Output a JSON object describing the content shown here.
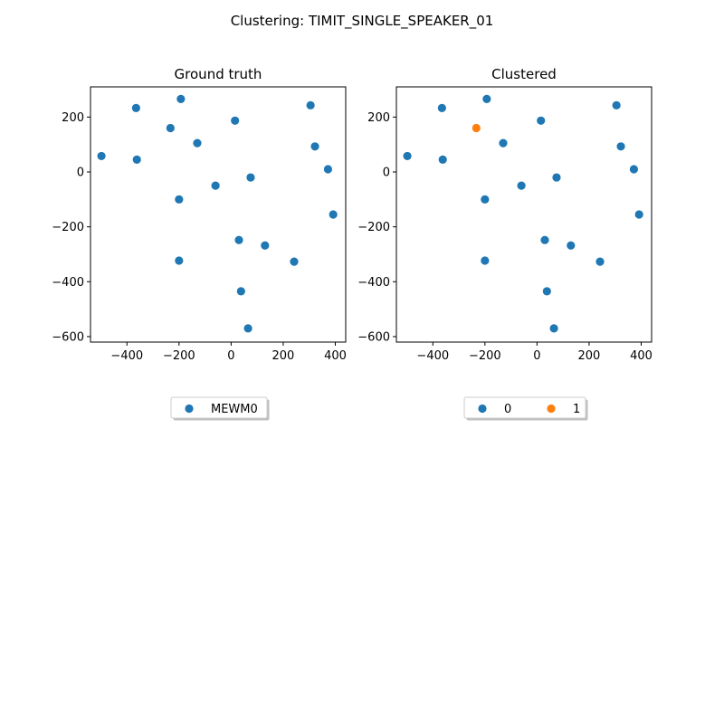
{
  "title": "Clustering: TIMIT_SINGLE_SPEAKER_01",
  "colors": {
    "c0": "#1f77b4",
    "c1": "#ff7f0e"
  },
  "chart_data": [
    {
      "type": "scatter",
      "title": "Ground truth",
      "xlim": [
        -540,
        440
      ],
      "ylim": [
        -620,
        310
      ],
      "xticks": [
        -400,
        -200,
        0,
        200,
        400
      ],
      "yticks": [
        -600,
        -400,
        -200,
        0,
        200
      ],
      "xtick_labels": [
        "−400",
        "−200",
        "0",
        "200",
        "400"
      ],
      "ytick_labels": [
        "−600",
        "−400",
        "−200",
        "0",
        "200"
      ],
      "legend": {
        "placement": "bottom-center",
        "ncol": 1
      },
      "series": [
        {
          "name": "MEWM0",
          "color": "#1f77b4",
          "points": [
            [
              -498,
              58
            ],
            [
              -365,
              233
            ],
            [
              -362,
              45
            ],
            [
              -233,
              160
            ],
            [
              -193,
              266
            ],
            [
              -130,
              105
            ],
            [
              -200,
              -100
            ],
            [
              -200,
              -323
            ],
            [
              -60,
              -50
            ],
            [
              15,
              187
            ],
            [
              75,
              -20
            ],
            [
              30,
              -248
            ],
            [
              38,
              -435
            ],
            [
              65,
              -570
            ],
            [
              130,
              -268
            ],
            [
              242,
              -327
            ],
            [
              305,
              243
            ],
            [
              322,
              93
            ],
            [
              372,
              10
            ],
            [
              392,
              -155
            ]
          ]
        }
      ]
    },
    {
      "type": "scatter",
      "title": "Clustered",
      "xlim": [
        -540,
        440
      ],
      "ylim": [
        -620,
        310
      ],
      "xticks": [
        -400,
        -200,
        0,
        200,
        400
      ],
      "yticks": [
        -600,
        -400,
        -200,
        0,
        200
      ],
      "xtick_labels": [
        "−400",
        "−200",
        "0",
        "200",
        "400"
      ],
      "ytick_labels": [
        "−600",
        "−400",
        "−200",
        "0",
        "200"
      ],
      "legend": {
        "placement": "bottom-center",
        "ncol": 2
      },
      "series": [
        {
          "name": "0",
          "color": "#1f77b4",
          "points": [
            [
              -498,
              58
            ],
            [
              -365,
              233
            ],
            [
              -362,
              45
            ],
            [
              -193,
              266
            ],
            [
              -130,
              105
            ],
            [
              -200,
              -100
            ],
            [
              -200,
              -323
            ],
            [
              -60,
              -50
            ],
            [
              15,
              187
            ],
            [
              75,
              -20
            ],
            [
              30,
              -248
            ],
            [
              38,
              -435
            ],
            [
              65,
              -570
            ],
            [
              130,
              -268
            ],
            [
              242,
              -327
            ],
            [
              305,
              243
            ],
            [
              322,
              93
            ],
            [
              372,
              10
            ],
            [
              392,
              -155
            ]
          ]
        },
        {
          "name": "1",
          "color": "#ff7f0e",
          "points": [
            [
              -233,
              160
            ]
          ]
        }
      ]
    }
  ]
}
